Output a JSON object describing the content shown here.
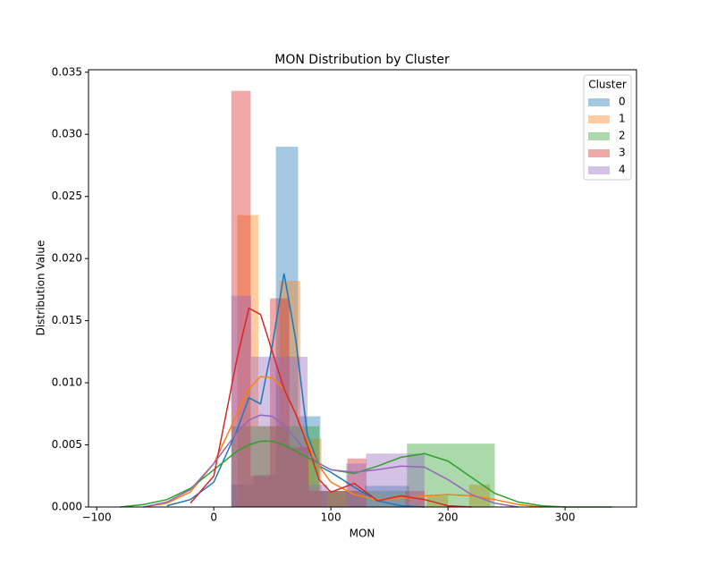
{
  "chart_data": {
    "type": "histogram",
    "title": "MON Distribution by Cluster",
    "xlabel": "MON",
    "ylabel": "Distribution Value",
    "xlim": [
      -107,
      361
    ],
    "ylim": [
      0,
      0.0352
    ],
    "xticks": [
      {
        "value": -100,
        "label": "−100"
      },
      0,
      100,
      200,
      300
    ],
    "yticks": [
      {
        "value": 0,
        "label": "0.000"
      },
      {
        "value": 0.005,
        "label": "0.005"
      },
      {
        "value": 0.01,
        "label": "0.010"
      },
      {
        "value": 0.015,
        "label": "0.015"
      },
      {
        "value": 0.02,
        "label": "0.020"
      },
      {
        "value": 0.025,
        "label": "0.025"
      },
      {
        "value": 0.03,
        "label": "0.030"
      },
      {
        "value": 0.035,
        "label": "0.035"
      }
    ],
    "legend": {
      "title": "Cluster",
      "position": "upper right"
    },
    "kde_x": [
      -80,
      -60,
      -40,
      -20,
      0,
      20,
      30,
      40,
      50,
      60,
      70,
      80,
      90,
      100,
      120,
      140,
      160,
      180,
      200,
      220,
      240,
      260,
      280,
      300,
      320,
      340
    ],
    "series": [
      {
        "name": "0",
        "color": "#1f77b4",
        "bins": [
          15,
          34,
          53,
          72,
          91,
          110,
          129,
          148,
          167
        ],
        "values": [
          0.0018,
          0.0026,
          0.029,
          0.0073,
          0.0013,
          0.0013,
          0.0017,
          0.0017
        ],
        "kde": [
          null,
          null,
          0.0001,
          0.0006,
          0.002,
          0.0062,
          0.0088,
          0.0083,
          0.013,
          0.0188,
          0.0135,
          0.0058,
          0.0033,
          0.0028,
          0.0016,
          0.0005,
          0.0001,
          0,
          null,
          null,
          null,
          null,
          null,
          null,
          null,
          null
        ]
      },
      {
        "name": "1",
        "color": "#ff7f0e",
        "bins": [
          20,
          38,
          56,
          74,
          92,
          110,
          128,
          146,
          164,
          182,
          200,
          218,
          236
        ],
        "values": [
          0.0235,
          0.0065,
          0.0182,
          0.0055,
          0,
          0,
          0,
          0,
          0,
          0.0009,
          0,
          0.0018
        ],
        "kde": [
          null,
          0,
          0.0003,
          0.0012,
          0.0035,
          0.0075,
          0.0095,
          0.0105,
          0.0104,
          0.0095,
          0.0075,
          0.0052,
          0.0033,
          0.002,
          0.001,
          0.0006,
          0.0007,
          0.0009,
          0.001,
          0.0009,
          0.0006,
          0.0002,
          0,
          null,
          null,
          null
        ]
      },
      {
        "name": "2",
        "color": "#2ca02c",
        "bins": [
          15,
          90,
          165,
          240
        ],
        "values": [
          0.0065,
          0.0013,
          0.0051
        ],
        "kde": [
          0,
          0.0002,
          0.0006,
          0.0015,
          0.003,
          0.0045,
          0.005,
          0.0053,
          0.0053,
          0.005,
          0.0045,
          0.004,
          0.0035,
          0.003,
          0.0027,
          0.0033,
          0.004,
          0.0043,
          0.0037,
          0.0024,
          0.0011,
          0.0004,
          0.0001,
          0,
          0,
          0
        ]
      },
      {
        "name": "3",
        "color": "#d62728",
        "bins": [
          15,
          31.5,
          48,
          64.5,
          81,
          97.5,
          114,
          130.5,
          147,
          163.5,
          180
        ],
        "values": [
          0.0335,
          0.0025,
          0.0168,
          0.0048,
          0.0013,
          0.0013,
          0.0039,
          0,
          0,
          0.0013
        ],
        "kde": [
          null,
          null,
          null,
          0.0003,
          0.0025,
          0.012,
          0.016,
          0.0155,
          0.0125,
          0.0095,
          0.0075,
          0.005,
          0.0022,
          0.0012,
          0.0019,
          0.0005,
          0.0009,
          0.0006,
          0.0001,
          0,
          null,
          null,
          null,
          null,
          null,
          null
        ]
      },
      {
        "name": "4",
        "color": "#9467bd",
        "bins": [
          15,
          32,
          48,
          64,
          80,
          97,
          113,
          130,
          146,
          163,
          180
        ],
        "values": [
          0.017,
          0.0121,
          0.0121,
          0.0121,
          0.0018,
          0,
          0.0035,
          0.0043,
          0.0043,
          0.0043
        ],
        "kde": [
          null,
          0,
          0.0004,
          0.0014,
          0.0035,
          0.006,
          0.007,
          0.0074,
          0.0073,
          0.0066,
          0.0055,
          0.0043,
          0.0035,
          0.003,
          0.0028,
          0.003,
          0.0033,
          0.0032,
          0.0022,
          0.001,
          0.0003,
          0,
          null,
          null,
          null,
          null
        ]
      }
    ]
  }
}
